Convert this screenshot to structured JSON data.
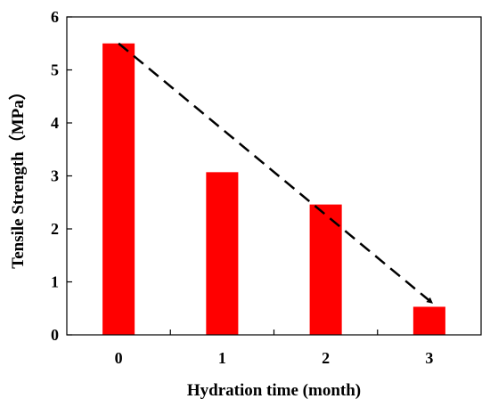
{
  "chart_data": {
    "type": "bar",
    "title": "",
    "xlabel": "Hydration time (month)",
    "ylabel": "Tensile Strength（MPa）",
    "categories": [
      "0",
      "1",
      "2",
      "3"
    ],
    "values": [
      5.5,
      3.07,
      2.46,
      0.53
    ],
    "ylim": [
      0,
      6
    ],
    "yticks": [
      0,
      1,
      2,
      3,
      4,
      5,
      6
    ],
    "grid": false,
    "legend": "none",
    "bar_color": "#ff0000",
    "annotation": {
      "type": "dashed-arrow",
      "from": {
        "x": "0",
        "y": 5.5
      },
      "to": {
        "x": "3",
        "y": 0.53
      },
      "color": "#000000"
    }
  }
}
